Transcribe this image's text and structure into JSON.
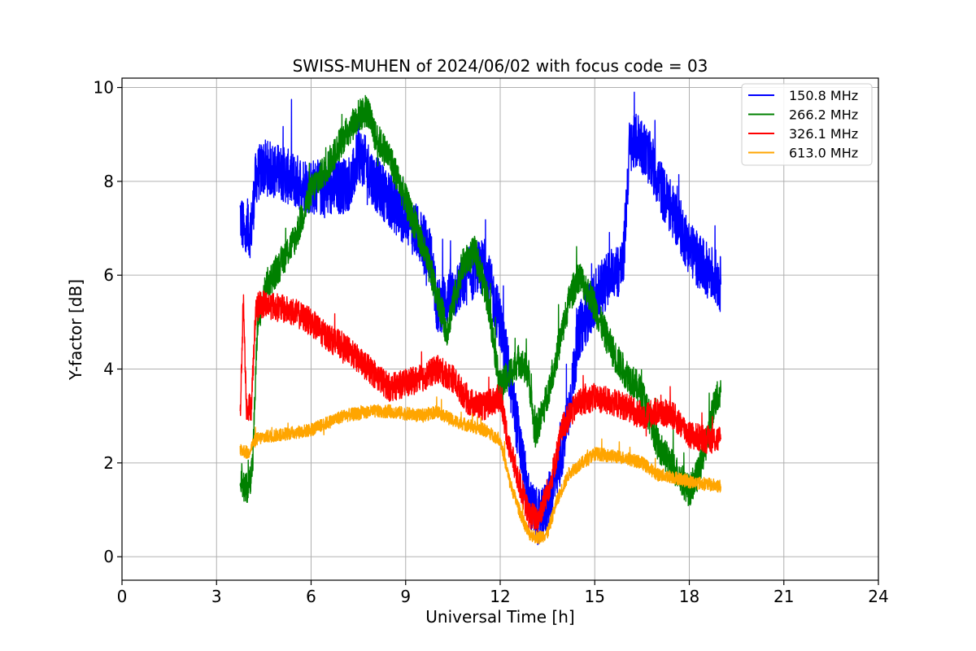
{
  "chart_data": {
    "type": "line",
    "title": "SWISS-MUHEN of 2024/06/02 with focus code = 03",
    "xlabel": "Universal Time [h]",
    "ylabel": "Y-factor [dB]",
    "xlim": [
      0,
      24
    ],
    "ylim": [
      -0.5,
      10.2
    ],
    "xticks": [
      0,
      3,
      6,
      9,
      12,
      15,
      18,
      21,
      24
    ],
    "yticks": [
      0,
      2,
      4,
      6,
      8,
      10
    ],
    "grid": true,
    "legend_position": "top-right",
    "series": [
      {
        "name": "150.8 MHz",
        "color": "#0000ff",
        "noise": 0.6,
        "x": [
          3.75,
          3.9,
          4.1,
          4.25,
          4.5,
          5.0,
          5.5,
          6.0,
          6.5,
          7.0,
          7.3,
          7.5,
          7.8,
          8.0,
          8.5,
          9.0,
          9.5,
          9.8,
          10.0,
          10.5,
          11.0,
          11.5,
          12.0,
          12.3,
          12.6,
          12.9,
          13.1,
          13.3,
          13.6,
          13.9,
          14.2,
          14.5,
          15.0,
          15.5,
          15.9,
          16.1,
          16.4,
          16.8,
          17.2,
          17.6,
          18.0,
          18.4,
          18.8,
          19.0
        ],
        "y": [
          7.3,
          6.8,
          7.0,
          8.1,
          8.3,
          8.2,
          8.0,
          7.9,
          7.8,
          7.9,
          8.0,
          8.6,
          8.3,
          8.0,
          7.6,
          7.2,
          6.8,
          6.4,
          5.3,
          5.6,
          6.0,
          6.2,
          5.0,
          3.8,
          2.5,
          1.2,
          0.9,
          0.8,
          1.3,
          2.0,
          3.2,
          4.8,
          5.5,
          6.0,
          6.2,
          8.7,
          8.9,
          8.4,
          7.7,
          7.2,
          6.6,
          6.2,
          6.0,
          5.8
        ]
      },
      {
        "name": "266.2 MHz",
        "color": "#008000",
        "noise": 0.35,
        "x": [
          3.75,
          3.9,
          4.05,
          4.15,
          4.3,
          4.6,
          5.0,
          5.5,
          6.0,
          6.5,
          7.0,
          7.5,
          7.8,
          8.0,
          8.5,
          9.0,
          9.5,
          10.0,
          10.3,
          10.8,
          11.2,
          11.6,
          12.0,
          12.3,
          12.6,
          12.9,
          13.1,
          13.4,
          13.8,
          14.2,
          14.5,
          14.9,
          15.3,
          15.7,
          16.0,
          16.5,
          17.0,
          17.5,
          18.0,
          18.3,
          18.6,
          18.8,
          19.0
        ],
        "y": [
          1.8,
          1.4,
          1.6,
          2.0,
          5.0,
          5.8,
          6.2,
          6.8,
          7.8,
          8.3,
          8.9,
          9.4,
          9.5,
          9.0,
          8.5,
          7.6,
          6.7,
          5.6,
          4.8,
          6.2,
          6.5,
          5.5,
          3.6,
          3.9,
          4.2,
          3.9,
          2.6,
          3.2,
          4.3,
          5.5,
          6.0,
          5.5,
          4.8,
          4.2,
          3.9,
          3.5,
          2.4,
          1.9,
          1.4,
          1.8,
          2.6,
          3.3,
          3.5
        ]
      },
      {
        "name": "326.1 MHz",
        "color": "#ff0000",
        "noise": 0.3,
        "x": [
          3.75,
          3.85,
          3.95,
          4.1,
          4.25,
          4.5,
          5.0,
          5.5,
          6.0,
          6.3,
          6.7,
          7.0,
          7.5,
          8.0,
          8.5,
          9.0,
          9.5,
          10.0,
          10.5,
          11.0,
          11.5,
          12.0,
          12.3,
          12.6,
          12.9,
          13.2,
          13.6,
          14.0,
          14.5,
          15.0,
          15.5,
          16.0,
          16.5,
          17.0,
          17.5,
          18.0,
          18.5,
          19.0
        ],
        "y": [
          3.0,
          5.5,
          3.2,
          3.2,
          5.3,
          5.4,
          5.3,
          5.2,
          5.0,
          4.8,
          4.6,
          4.5,
          4.2,
          3.9,
          3.6,
          3.7,
          3.8,
          4.0,
          3.8,
          3.3,
          3.2,
          3.4,
          2.3,
          1.6,
          0.9,
          0.8,
          1.6,
          2.8,
          3.3,
          3.4,
          3.3,
          3.2,
          3.0,
          3.1,
          3.0,
          2.6,
          2.5,
          2.5
        ]
      },
      {
        "name": "613.0 MHz",
        "color": "#ffa500",
        "noise": 0.14,
        "x": [
          3.75,
          4.0,
          4.15,
          4.25,
          4.5,
          5.0,
          5.5,
          6.0,
          6.5,
          7.0,
          7.5,
          8.0,
          8.5,
          9.0,
          9.5,
          10.0,
          10.5,
          11.0,
          11.5,
          12.0,
          12.3,
          12.6,
          12.9,
          13.2,
          13.5,
          13.8,
          14.2,
          14.6,
          15.0,
          15.5,
          16.0,
          16.5,
          17.0,
          17.5,
          18.0,
          18.5,
          19.0
        ],
        "y": [
          2.3,
          2.2,
          2.4,
          2.5,
          2.55,
          2.6,
          2.65,
          2.7,
          2.85,
          3.0,
          3.05,
          3.1,
          3.1,
          3.05,
          3.0,
          3.1,
          2.9,
          2.8,
          2.7,
          2.5,
          1.6,
          1.0,
          0.5,
          0.4,
          0.5,
          1.2,
          1.8,
          2.0,
          2.2,
          2.15,
          2.1,
          2.0,
          1.75,
          1.7,
          1.6,
          1.55,
          1.5
        ]
      }
    ]
  }
}
